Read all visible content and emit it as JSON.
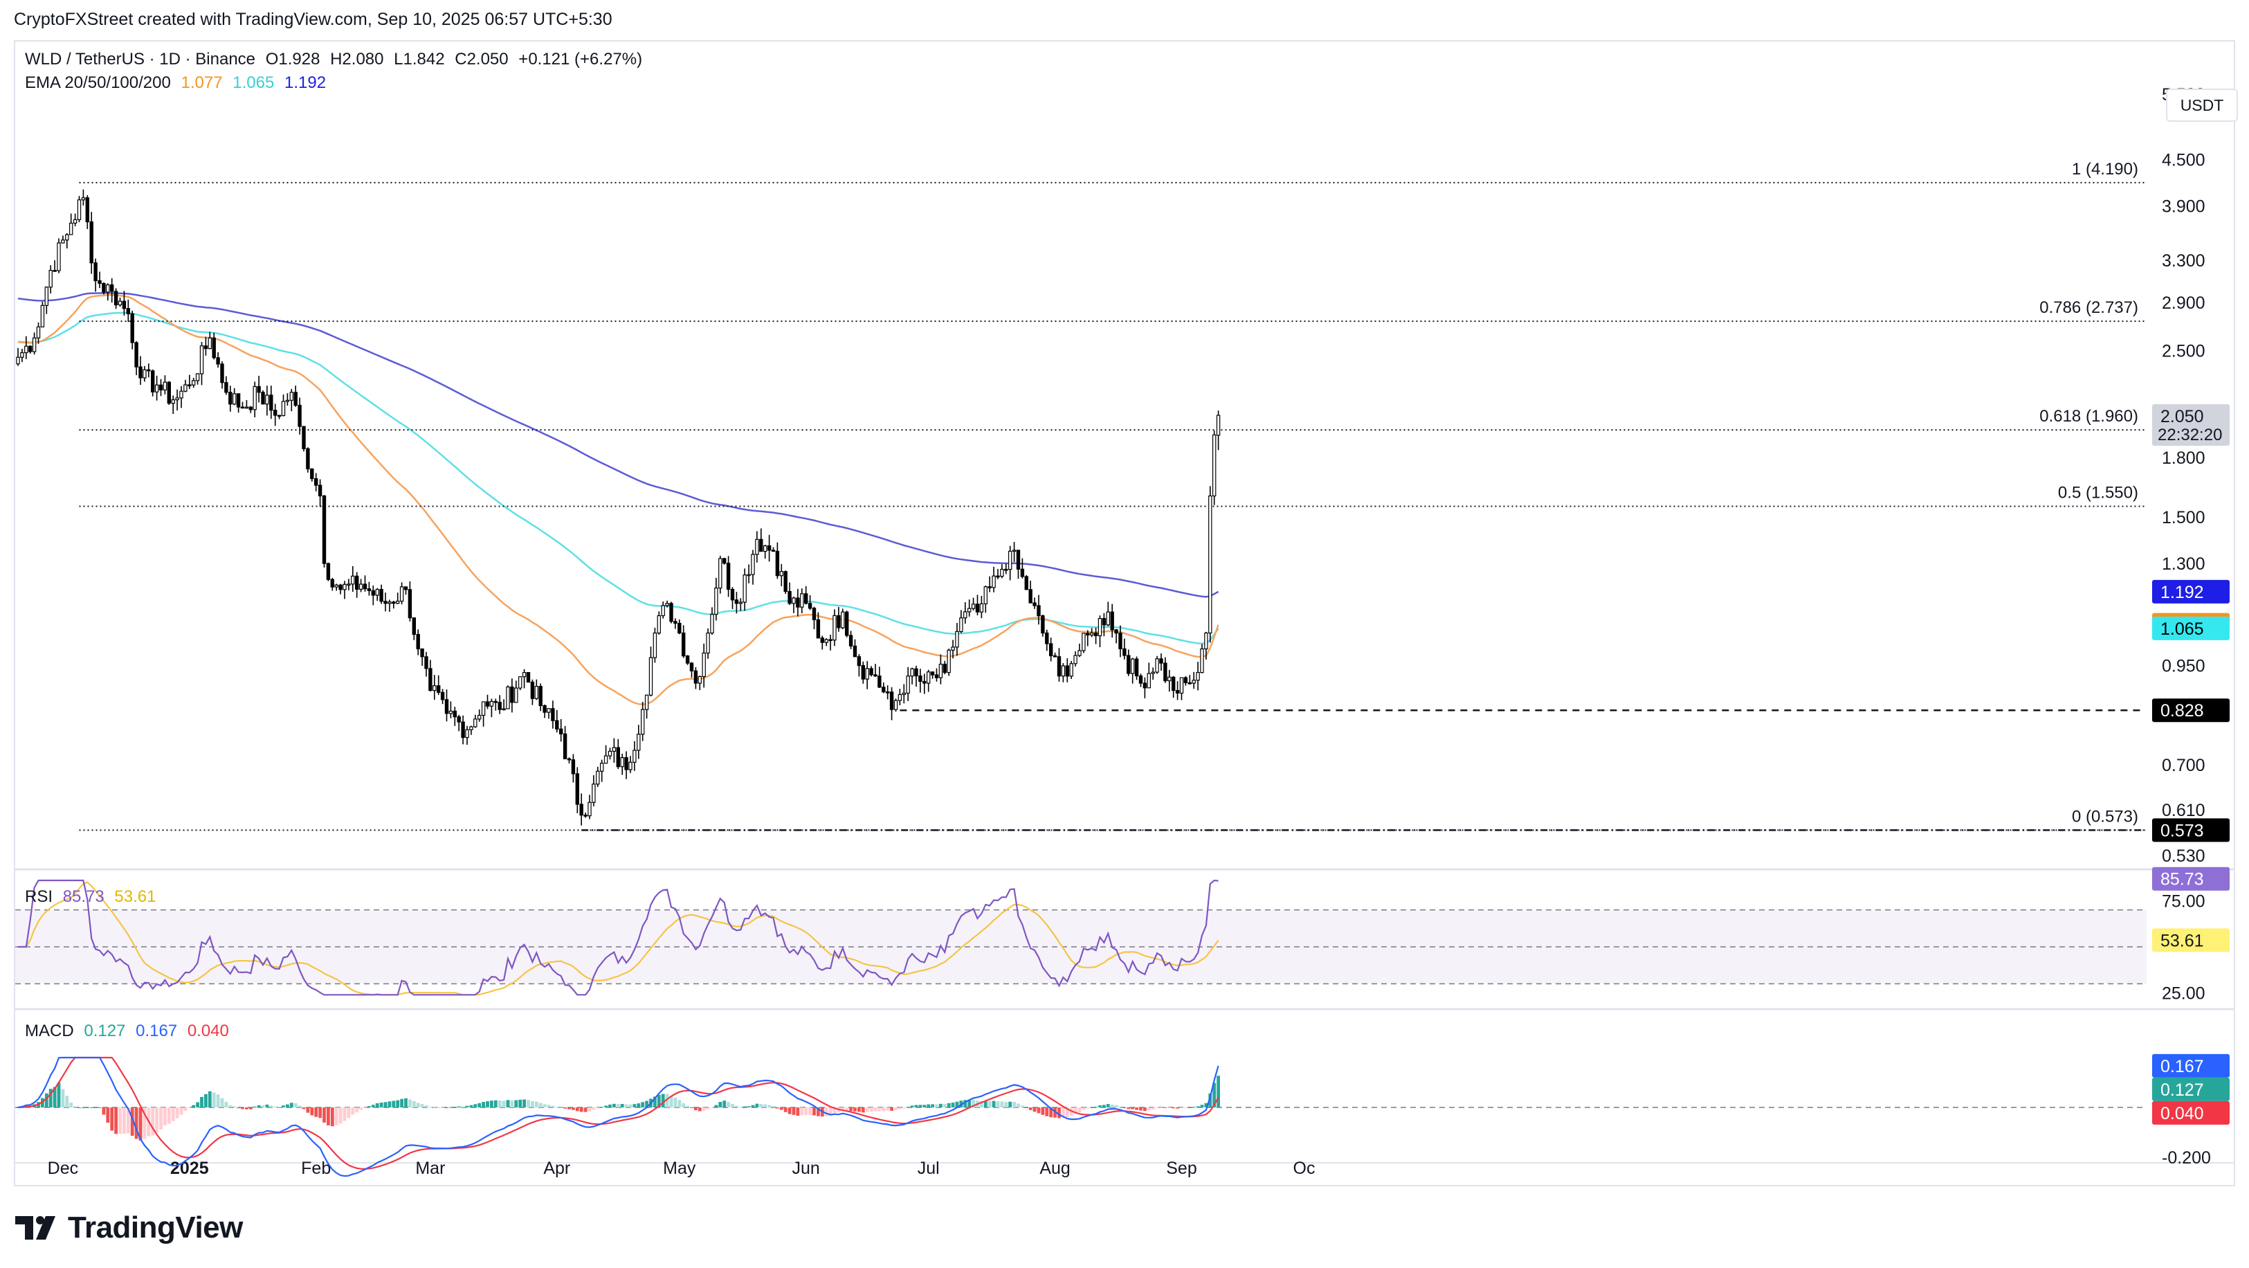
{
  "header": {
    "caption": "CryptoFXStreet created with TradingView.com, Sep 10, 2025 06:57 UTC+5:30"
  },
  "legend": {
    "symbol": "WLD / TetherUS · 1D · Binance",
    "open": "O1.928",
    "high": "H2.080",
    "low": "L1.842",
    "close": "C2.050",
    "change": "+0.121 (+6.27%)",
    "ema_label": "EMA 20/50/100/200",
    "ema50": "1.077",
    "ema100": "1.065",
    "ema200": "1.192",
    "rsi_label": "RSI",
    "rsi_value": "85.73",
    "rsi_ma": "53.61",
    "macd_label": "MACD",
    "macd_hist": "0.127",
    "macd_line": "0.167",
    "macd_signal": "0.040"
  },
  "currency": "USDT",
  "brand": {
    "text": "TradingView"
  },
  "colors": {
    "up": "#ffffff",
    "down": "#000000",
    "ema50": "#f7a35c",
    "ema100": "#5ce1e6",
    "ema200": "#5b5bd6",
    "rsi": "#7e57c2",
    "rsi_ma": "#f5c542",
    "macd": "#2962ff",
    "signal": "#f23645",
    "hist_up_strong": "#26a69a",
    "hist_up_weak": "#b2dfdb",
    "hist_dn_strong": "#ef5350",
    "hist_dn_weak": "#ffcdd2",
    "tag_ema200": "#1e1ee6",
    "tag_ema50": "#f7941d",
    "tag_ema100": "#35e8ef",
    "tag_dark": "#000000",
    "tag_rsi": "#8e6fd6",
    "tag_rsi_ma": "#fff176",
    "tag_macd": "#26a69a",
    "tag_signal": "#f23645",
    "tag_price": "#d1d4dc"
  },
  "chart_data": {
    "type": "candlestick",
    "title": "WLD / TetherUS · 1D · Binance",
    "scale": "log",
    "price_axis_ticks": [
      "5.500",
      "4.500",
      "3.900",
      "3.300",
      "2.900",
      "2.500",
      "2.050",
      "1.800",
      "1.500",
      "1.300",
      "0.950",
      "0.700",
      "0.610",
      "0.530"
    ],
    "x_axis_labels": [
      "Dec",
      "2025",
      "Feb",
      "Mar",
      "Apr",
      "May",
      "Jun",
      "Jul",
      "Aug",
      "Sep",
      "Oc"
    ],
    "fib_levels": [
      {
        "label": "1 (4.190)",
        "value": 4.19
      },
      {
        "label": "0.786 (2.737)",
        "value": 2.737
      },
      {
        "label": "0.618 (1.960)",
        "value": 1.96
      },
      {
        "label": "0.5 (1.550)",
        "value": 1.55
      },
      {
        "label": "0 (0.573)",
        "value": 0.573
      }
    ],
    "support_level": {
      "label": "0.828",
      "value": 0.828
    },
    "price_tags": [
      {
        "text": "2.050",
        "sub": "22:32:20",
        "value": 2.05,
        "kind": "price"
      },
      {
        "text": "1.192",
        "value": 1.192,
        "kind": "ema200"
      },
      {
        "text": "1.077",
        "value": 1.077,
        "kind": "ema50"
      },
      {
        "text": "1.065",
        "value": 1.065,
        "kind": "ema100"
      },
      {
        "text": "0.828",
        "value": 0.828,
        "kind": "dark"
      },
      {
        "text": "0.573",
        "value": 0.573,
        "kind": "dark"
      }
    ],
    "close_anchors": [
      [
        "2024-11-20",
        2.45
      ],
      [
        "2024-11-24",
        2.6
      ],
      [
        "2024-11-28",
        3.2
      ],
      [
        "2024-12-03",
        3.7
      ],
      [
        "2024-12-06",
        4.0
      ],
      [
        "2024-12-09",
        3.1
      ],
      [
        "2024-12-13",
        3.0
      ],
      [
        "2024-12-17",
        2.8
      ],
      [
        "2024-12-20",
        2.3
      ],
      [
        "2024-12-24",
        2.25
      ],
      [
        "2024-12-28",
        2.15
      ],
      [
        "2025-01-01",
        2.25
      ],
      [
        "2025-01-06",
        2.6
      ],
      [
        "2025-01-10",
        2.2
      ],
      [
        "2025-01-14",
        2.1
      ],
      [
        "2025-01-18",
        2.2
      ],
      [
        "2025-01-22",
        2.05
      ],
      [
        "2025-01-26",
        2.2
      ],
      [
        "2025-01-29",
        1.85
      ],
      [
        "2025-02-02",
        1.6
      ],
      [
        "2025-02-03",
        1.3
      ],
      [
        "2025-02-07",
        1.2
      ],
      [
        "2025-02-12",
        1.22
      ],
      [
        "2025-02-18",
        1.15
      ],
      [
        "2025-02-23",
        1.2
      ],
      [
        "2025-02-26",
        1.0
      ],
      [
        "2025-03-01",
        0.88
      ],
      [
        "2025-03-05",
        0.82
      ],
      [
        "2025-03-10",
        0.78
      ],
      [
        "2025-03-14",
        0.85
      ],
      [
        "2025-03-18",
        0.83
      ],
      [
        "2025-03-24",
        0.93
      ],
      [
        "2025-03-28",
        0.84
      ],
      [
        "2025-04-02",
        0.77
      ],
      [
        "2025-04-07",
        0.6
      ],
      [
        "2025-04-10",
        0.66
      ],
      [
        "2025-04-14",
        0.73
      ],
      [
        "2025-04-18",
        0.69
      ],
      [
        "2025-04-22",
        0.83
      ],
      [
        "2025-04-25",
        1.05
      ],
      [
        "2025-04-28",
        1.15
      ],
      [
        "2025-05-01",
        1.05
      ],
      [
        "2025-05-05",
        0.9
      ],
      [
        "2025-05-08",
        1.05
      ],
      [
        "2025-05-11",
        1.32
      ],
      [
        "2025-05-15",
        1.15
      ],
      [
        "2025-05-20",
        1.4
      ],
      [
        "2025-05-24",
        1.35
      ],
      [
        "2025-05-28",
        1.15
      ],
      [
        "2025-06-01",
        1.15
      ],
      [
        "2025-06-05",
        1.02
      ],
      [
        "2025-06-10",
        1.12
      ],
      [
        "2025-06-14",
        0.95
      ],
      [
        "2025-06-18",
        0.92
      ],
      [
        "2025-06-22",
        0.83
      ],
      [
        "2025-06-26",
        0.92
      ],
      [
        "2025-06-30",
        0.9
      ],
      [
        "2025-07-05",
        0.93
      ],
      [
        "2025-07-09",
        1.1
      ],
      [
        "2025-07-13",
        1.12
      ],
      [
        "2025-07-18",
        1.25
      ],
      [
        "2025-07-21",
        1.35
      ],
      [
        "2025-07-25",
        1.2
      ],
      [
        "2025-07-29",
        1.05
      ],
      [
        "2025-08-02",
        0.92
      ],
      [
        "2025-08-06",
        0.98
      ],
      [
        "2025-08-10",
        1.05
      ],
      [
        "2025-08-14",
        1.12
      ],
      [
        "2025-08-18",
        0.98
      ],
      [
        "2025-08-22",
        0.9
      ],
      [
        "2025-08-26",
        0.97
      ],
      [
        "2025-08-30",
        0.88
      ],
      [
        "2025-09-03",
        0.9
      ],
      [
        "2025-09-05",
        0.93
      ],
      [
        "2025-09-06",
        1.0
      ],
      [
        "2025-09-07",
        1.05
      ],
      [
        "2025-09-08",
        1.6
      ],
      [
        "2025-09-09",
        1.93
      ],
      [
        "2025-09-10",
        2.05
      ]
    ],
    "last_candle": {
      "date": "2025-09-10",
      "open": 1.928,
      "high": 2.08,
      "low": 1.842,
      "close": 2.05
    },
    "ema_end": {
      "ema50": 1.077,
      "ema100": 1.065,
      "ema200": 1.192
    },
    "rsi": {
      "axis_ticks": [
        "75.00",
        "25.00"
      ],
      "bands": [
        70,
        50,
        30
      ],
      "last": 85.73,
      "ma_last": 53.61
    },
    "macd": {
      "axis_ticks": [
        "0.000",
        "-0.200"
      ],
      "hist_last": 0.127,
      "macd_last": 0.167,
      "signal_last": 0.04
    }
  }
}
